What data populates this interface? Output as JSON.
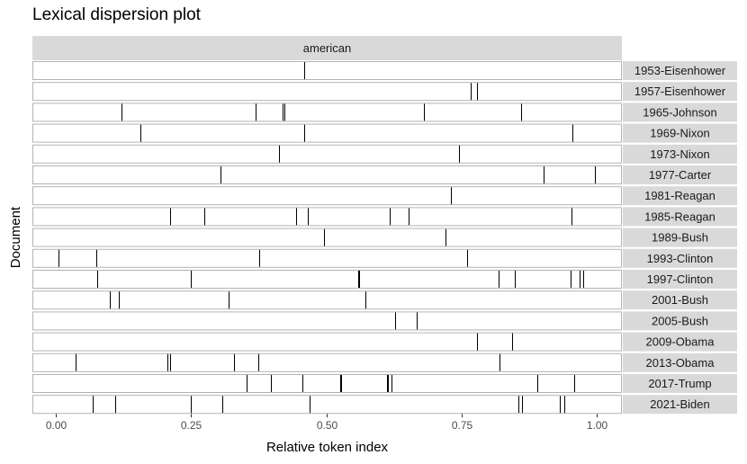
{
  "chart_data": {
    "type": "dispersion",
    "title": "Lexical dispersion plot",
    "facet": "american",
    "xlabel": "Relative token index",
    "ylabel": "Document",
    "xlim": [
      0,
      1
    ],
    "xticks": [
      0.0,
      0.25,
      0.5,
      0.75,
      1.0
    ],
    "xtick_labels": [
      "0.00",
      "0.25",
      "0.50",
      "0.75",
      "1.00"
    ],
    "documents": [
      {
        "name": "1953-Eisenhower",
        "positions": [
          0.46
        ]
      },
      {
        "name": "1957-Eisenhower",
        "positions": [
          0.767,
          0.778
        ]
      },
      {
        "name": "1965-Johnson",
        "positions": [
          0.122,
          0.369,
          0.419,
          0.422,
          0.681,
          0.86
        ]
      },
      {
        "name": "1969-Nixon",
        "positions": [
          0.157,
          0.46,
          0.955
        ]
      },
      {
        "name": "1973-Nixon",
        "positions": [
          0.413,
          0.745
        ]
      },
      {
        "name": "1977-Carter",
        "positions": [
          0.305,
          0.902,
          0.996
        ]
      },
      {
        "name": "1981-Reagan",
        "positions": [
          0.731
        ]
      },
      {
        "name": "1985-Reagan",
        "positions": [
          0.212,
          0.275,
          0.445,
          0.466,
          0.617,
          0.652,
          0.953
        ]
      },
      {
        "name": "1989-Bush",
        "positions": [
          0.496,
          0.72
        ]
      },
      {
        "name": "1993-Clinton",
        "positions": [
          0.005,
          0.075,
          0.376,
          0.76
        ]
      },
      {
        "name": "1997-Clinton",
        "positions": [
          0.077,
          0.25,
          0.559,
          0.561,
          0.818,
          0.849,
          0.951,
          0.969,
          0.975
        ]
      },
      {
        "name": "2001-Bush",
        "positions": [
          0.1,
          0.117,
          0.32,
          0.573
        ]
      },
      {
        "name": "2005-Bush",
        "positions": [
          0.628,
          0.667
        ]
      },
      {
        "name": "2009-Obama",
        "positions": [
          0.778,
          0.843
        ]
      },
      {
        "name": "2013-Obama",
        "positions": [
          0.037,
          0.206,
          0.212,
          0.33,
          0.375,
          0.82
        ]
      },
      {
        "name": "2017-Trump",
        "positions": [
          0.352,
          0.398,
          0.456,
          0.526,
          0.528,
          0.612,
          0.614,
          0.62,
          0.89,
          0.958
        ]
      },
      {
        "name": "2021-Biden",
        "positions": [
          0.068,
          0.11,
          0.25,
          0.307,
          0.469,
          0.855,
          0.862,
          0.932,
          0.94
        ]
      }
    ],
    "grid": false,
    "legend": "none"
  }
}
